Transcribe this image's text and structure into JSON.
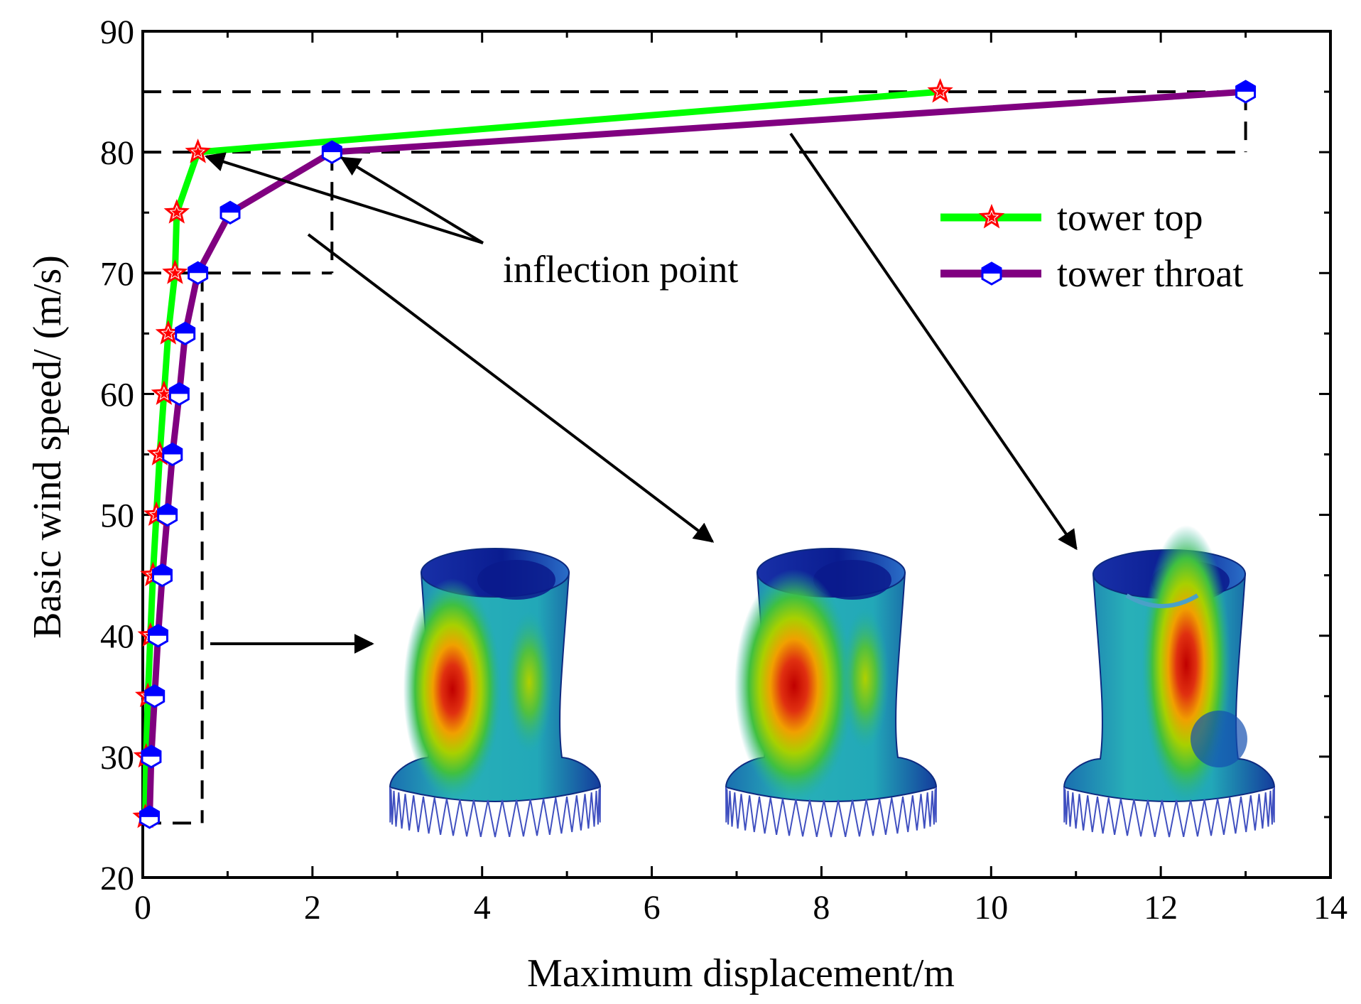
{
  "chart_data": {
    "type": "line",
    "title": "",
    "xlabel": "Maximum displacement/m",
    "ylabel": "Basic wind speed/ (m/s)",
    "xlim": [
      0,
      14
    ],
    "ylim": [
      20,
      90
    ],
    "xticks": [
      "0",
      "2",
      "4",
      "6",
      "8",
      "10",
      "12",
      "14"
    ],
    "yticks": [
      "20",
      "30",
      "40",
      "50",
      "60",
      "70",
      "80",
      "90"
    ],
    "grid": false,
    "legend_position": "upper-right",
    "series": [
      {
        "name": "tower top",
        "line_color": "#00ff00",
        "marker": "star",
        "marker_color": "#ff0000",
        "x": [
          0.03,
          0.04,
          0.06,
          0.09,
          0.12,
          0.16,
          0.2,
          0.25,
          0.3,
          0.38,
          0.4,
          0.65,
          9.4
        ],
        "y": [
          25,
          30,
          35,
          40,
          45,
          50,
          55,
          60,
          65,
          70,
          75,
          80,
          85
        ]
      },
      {
        "name": "tower throat",
        "line_color": "#800080",
        "marker": "hexagon",
        "marker_color": "#0000ff",
        "x": [
          0.08,
          0.1,
          0.14,
          0.18,
          0.23,
          0.29,
          0.35,
          0.43,
          0.5,
          0.65,
          1.03,
          2.23,
          13.0
        ],
        "y": [
          25,
          30,
          35,
          40,
          45,
          50,
          55,
          60,
          65,
          70,
          75,
          80,
          85
        ]
      }
    ],
    "reference_lines": [
      {
        "style": "dashed",
        "from": [
          0,
          85
        ],
        "to": [
          13.0,
          85
        ]
      },
      {
        "style": "dashed",
        "from": [
          13.0,
          85
        ],
        "to": [
          13.0,
          80
        ]
      },
      {
        "style": "dashed",
        "from": [
          0,
          80
        ],
        "to": [
          13.0,
          80
        ]
      },
      {
        "style": "dashed",
        "from": [
          2.23,
          80
        ],
        "to": [
          2.23,
          70
        ]
      },
      {
        "style": "dashed",
        "from": [
          0,
          70
        ],
        "to": [
          2.23,
          70
        ]
      },
      {
        "style": "dashed",
        "from": [
          0.7,
          70
        ],
        "to": [
          0.7,
          24.5
        ]
      },
      {
        "style": "dashed",
        "from": [
          0,
          24.5
        ],
        "to": [
          0.7,
          24.5
        ]
      }
    ],
    "annotations": [
      {
        "text": "inflection point",
        "points_to": [
          [
            0.65,
            80
          ],
          [
            2.23,
            80
          ]
        ]
      }
    ],
    "insets": [
      {
        "name": "tower-deformation-stage-1",
        "stage": 1
      },
      {
        "name": "tower-deformation-stage-2",
        "stage": 2
      },
      {
        "name": "tower-deformation-stage-3",
        "stage": 3
      }
    ]
  }
}
